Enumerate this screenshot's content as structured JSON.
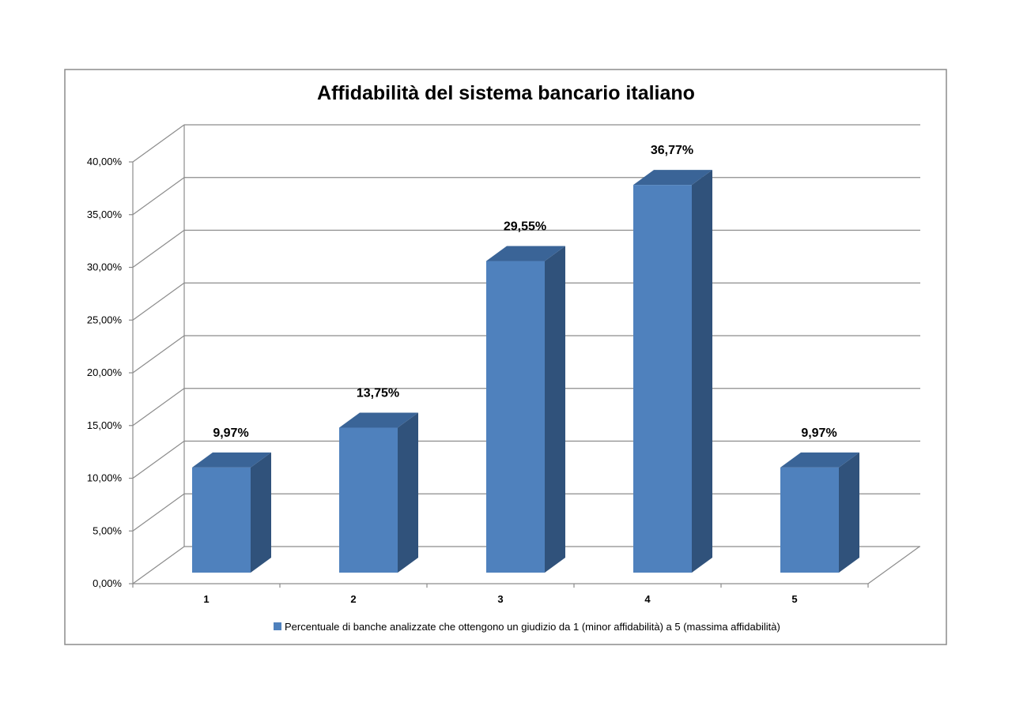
{
  "chart_data": {
    "type": "bar",
    "title": "Affidabilità del sistema bancario italiano",
    "categories": [
      "1",
      "2",
      "3",
      "4",
      "5"
    ],
    "series": [
      {
        "name": "Percentuale di banche analizzate che ottengono un giudizio da 1 (minor affidabilità) a 5 (massima affidabilità)",
        "values": [
          9.97,
          13.75,
          29.55,
          36.77,
          9.97
        ],
        "data_labels": [
          "9,97%",
          "13,75%",
          "29,55%",
          "36,77%",
          "9,97%"
        ]
      }
    ],
    "yticks": [
      "0,00%",
      "5,00%",
      "10,00%",
      "15,00%",
      "20,00%",
      "25,00%",
      "30,00%",
      "35,00%",
      "40,00%"
    ],
    "ylim": [
      0,
      40
    ],
    "grid": true,
    "legend_position": "bottom",
    "colors": {
      "bar_front": "#4F81BD",
      "bar_side": "#30527B",
      "bar_top": "#3A6497",
      "grid": "#8C8C8C",
      "frame": "#8C8C8C"
    }
  }
}
